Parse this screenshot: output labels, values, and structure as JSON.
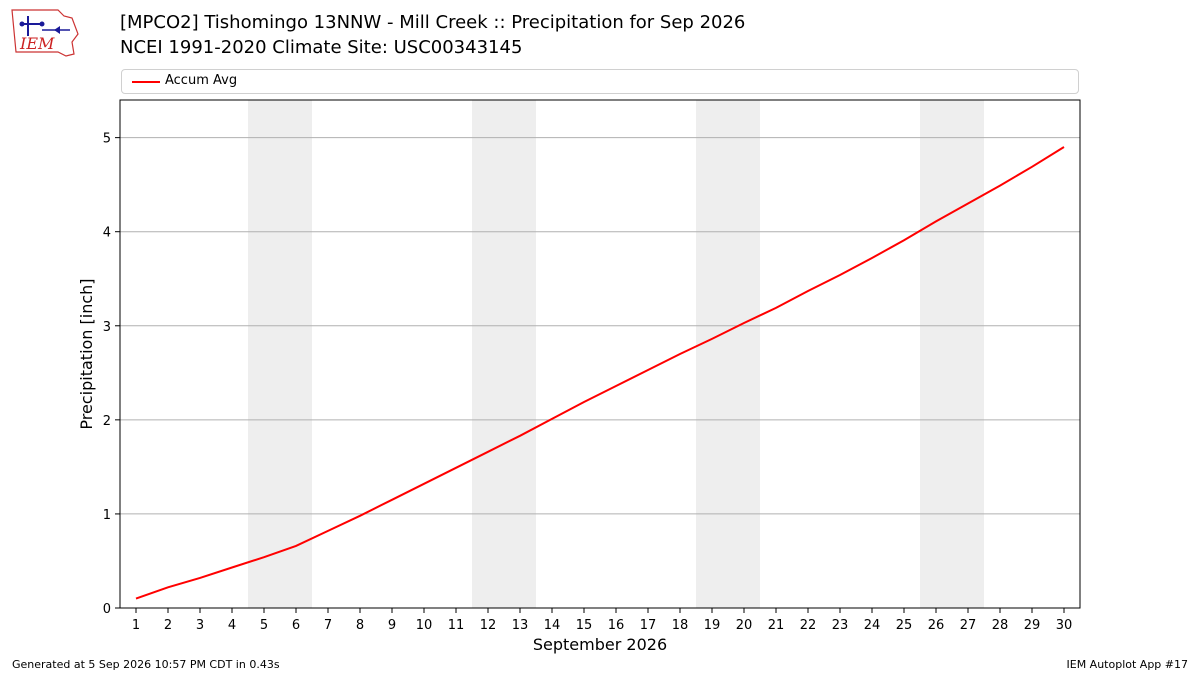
{
  "header": {
    "logo_text": "IEM",
    "title_line1": "[MPCO2] Tishomingo 13NNW - Mill Creek :: Precipitation for Sep 2026",
    "title_line2": "NCEI 1991-2020 Climate Site: USC00343145"
  },
  "footer": {
    "generated": "Generated at 5 Sep 2026 10:57 PM CDT in 0.43s",
    "app": "IEM Autoplot App #17"
  },
  "colors": {
    "series": "#ff0000",
    "weekend_band": "#eeeeee",
    "grid": "#b0b0b0"
  },
  "chart_data": {
    "type": "line",
    "xlabel": "September 2026",
    "ylabel": "Precipitation [inch]",
    "xlim": [
      0.5,
      30.5
    ],
    "ylim": [
      0,
      5.4
    ],
    "yticks": [
      0,
      1,
      2,
      3,
      4,
      5
    ],
    "x": [
      1,
      2,
      3,
      4,
      5,
      6,
      7,
      8,
      9,
      10,
      11,
      12,
      13,
      14,
      15,
      16,
      17,
      18,
      19,
      20,
      21,
      22,
      23,
      24,
      25,
      26,
      27,
      28,
      29,
      30
    ],
    "xtick_labels": [
      "1",
      "2",
      "3",
      "4",
      "5",
      "6",
      "7",
      "8",
      "9",
      "10",
      "11",
      "12",
      "13",
      "14",
      "15",
      "16",
      "17",
      "18",
      "19",
      "20",
      "21",
      "22",
      "23",
      "24",
      "25",
      "26",
      "27",
      "28",
      "29",
      "30"
    ],
    "grid": "horizontal",
    "legend_position": "top",
    "weekend_bands": [
      [
        4.5,
        6.5
      ],
      [
        11.5,
        13.5
      ],
      [
        18.5,
        20.5
      ],
      [
        25.5,
        27.5
      ]
    ],
    "series": [
      {
        "name": "Accum Avg",
        "color": "#ff0000",
        "values": [
          0.1,
          0.22,
          0.32,
          0.43,
          0.54,
          0.66,
          0.82,
          0.98,
          1.15,
          1.32,
          1.49,
          1.66,
          1.83,
          2.01,
          2.19,
          2.36,
          2.53,
          2.7,
          2.86,
          3.03,
          3.19,
          3.37,
          3.54,
          3.72,
          3.91,
          4.11,
          4.3,
          4.49,
          4.69,
          4.9
        ]
      }
    ]
  }
}
